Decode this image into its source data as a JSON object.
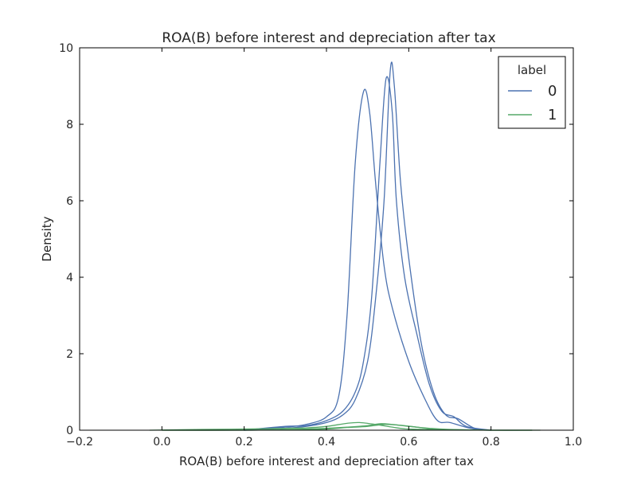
{
  "chart_data": {
    "type": "line",
    "title": "ROA(B) before interest and depreciation after tax",
    "xlabel": "ROA(B) before interest and depreciation after tax",
    "ylabel": "Density",
    "xlim": [
      -0.2,
      1.0
    ],
    "ylim": [
      0,
      10
    ],
    "xticks": [
      "−0.2",
      "0.0",
      "0.2",
      "0.4",
      "0.6",
      "0.8",
      "1.0"
    ],
    "yticks": [
      "0",
      "2",
      "4",
      "6",
      "8",
      "10"
    ],
    "grid": false,
    "legend": {
      "title": "label",
      "position": "top-right",
      "entries": [
        {
          "label": "0",
          "color": "#4c72b0"
        },
        {
          "label": "1",
          "color": "#55a868"
        }
      ]
    },
    "series": [
      {
        "name": "0",
        "color": "#4c72b0",
        "points": [
          [
            0.2,
            0.0
          ],
          [
            0.3,
            0.08
          ],
          [
            0.35,
            0.15
          ],
          [
            0.4,
            0.35
          ],
          [
            0.43,
            0.9
          ],
          [
            0.45,
            3.0
          ],
          [
            0.47,
            7.0
          ],
          [
            0.49,
            8.85
          ],
          [
            0.505,
            8.3
          ],
          [
            0.52,
            6.4
          ],
          [
            0.54,
            4.3
          ],
          [
            0.56,
            3.2
          ],
          [
            0.6,
            1.8
          ],
          [
            0.64,
            0.8
          ],
          [
            0.67,
            0.25
          ],
          [
            0.7,
            0.2
          ],
          [
            0.75,
            0.05
          ],
          [
            0.8,
            0.0
          ]
        ]
      },
      {
        "name": "0",
        "color": "#4c72b0",
        "points": [
          [
            0.2,
            0.0
          ],
          [
            0.3,
            0.1
          ],
          [
            0.35,
            0.12
          ],
          [
            0.4,
            0.25
          ],
          [
            0.44,
            0.5
          ],
          [
            0.47,
            1.0
          ],
          [
            0.49,
            1.8
          ],
          [
            0.51,
            3.5
          ],
          [
            0.53,
            7.0
          ],
          [
            0.545,
            9.2
          ],
          [
            0.56,
            8.3
          ],
          [
            0.57,
            6.0
          ],
          [
            0.59,
            4.0
          ],
          [
            0.62,
            2.5
          ],
          [
            0.65,
            1.2
          ],
          [
            0.68,
            0.5
          ],
          [
            0.71,
            0.35
          ],
          [
            0.74,
            0.1
          ],
          [
            0.8,
            0.0
          ]
        ]
      },
      {
        "name": "0",
        "color": "#4c72b0",
        "points": [
          [
            0.2,
            0.0
          ],
          [
            0.3,
            0.05
          ],
          [
            0.35,
            0.1
          ],
          [
            0.4,
            0.2
          ],
          [
            0.44,
            0.4
          ],
          [
            0.47,
            0.8
          ],
          [
            0.5,
            1.8
          ],
          [
            0.52,
            3.5
          ],
          [
            0.54,
            6.0
          ],
          [
            0.555,
            9.4
          ],
          [
            0.565,
            9.0
          ],
          [
            0.58,
            6.5
          ],
          [
            0.6,
            4.5
          ],
          [
            0.63,
            2.3
          ],
          [
            0.66,
            1.0
          ],
          [
            0.69,
            0.4
          ],
          [
            0.72,
            0.3
          ],
          [
            0.76,
            0.05
          ],
          [
            0.8,
            0.0
          ]
        ]
      },
      {
        "name": "1",
        "color": "#55a868",
        "points": [
          [
            -0.03,
            0.0
          ],
          [
            0.1,
            0.02
          ],
          [
            0.2,
            0.03
          ],
          [
            0.3,
            0.05
          ],
          [
            0.35,
            0.06
          ],
          [
            0.4,
            0.1
          ],
          [
            0.45,
            0.18
          ],
          [
            0.48,
            0.2
          ],
          [
            0.52,
            0.15
          ],
          [
            0.56,
            0.08
          ],
          [
            0.6,
            0.03
          ],
          [
            0.7,
            0.01
          ],
          [
            0.8,
            0.0
          ],
          [
            0.92,
            0.0
          ]
        ]
      },
      {
        "name": "1",
        "color": "#55a868",
        "points": [
          [
            0.0,
            0.0
          ],
          [
            0.2,
            0.0
          ],
          [
            0.3,
            0.02
          ],
          [
            0.35,
            0.03
          ],
          [
            0.4,
            0.05
          ],
          [
            0.45,
            0.08
          ],
          [
            0.5,
            0.12
          ],
          [
            0.53,
            0.17
          ],
          [
            0.56,
            0.15
          ],
          [
            0.6,
            0.1
          ],
          [
            0.65,
            0.05
          ],
          [
            0.7,
            0.02
          ],
          [
            0.8,
            0.0
          ],
          [
            0.9,
            0.0
          ]
        ]
      },
      {
        "name": "1",
        "color": "#55a868",
        "points": [
          [
            0.0,
            0.0
          ],
          [
            0.2,
            0.0
          ],
          [
            0.3,
            0.01
          ],
          [
            0.4,
            0.03
          ],
          [
            0.45,
            0.07
          ],
          [
            0.5,
            0.1
          ],
          [
            0.54,
            0.15
          ],
          [
            0.58,
            0.13
          ],
          [
            0.62,
            0.08
          ],
          [
            0.66,
            0.03
          ],
          [
            0.72,
            0.01
          ],
          [
            0.8,
            0.0
          ],
          [
            0.9,
            0.0
          ]
        ]
      }
    ]
  }
}
